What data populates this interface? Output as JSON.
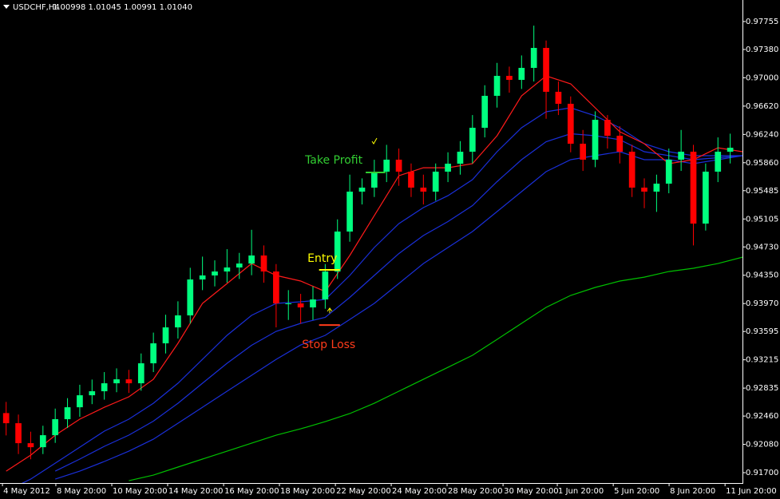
{
  "chart_data": {
    "type": "candlestick",
    "title": "USDCHF,H4",
    "subtitle": "1.00998 1.01045 1.00991 1.01040",
    "bull_color": "#00ff7f",
    "bear_color": "#ff0000",
    "xlim": [
      -0.5,
      60
    ],
    "ylim": [
      0.91561,
      0.98044
    ],
    "xticks": [
      {
        "value": -0.3,
        "label": "4 May 2012"
      },
      {
        "value": 4.05,
        "label": "8 May 20:00"
      },
      {
        "value": 8.61,
        "label": "10 May 20:00"
      },
      {
        "value": 13.16,
        "label": "14 May 20:00"
      },
      {
        "value": 17.72,
        "label": "16 May 20:00"
      },
      {
        "value": 22.27,
        "label": "18 May 20:00"
      },
      {
        "value": 26.83,
        "label": "22 May 20:00"
      },
      {
        "value": 31.38,
        "label": "24 May 20:00"
      },
      {
        "value": 35.93,
        "label": "28 May 20:00"
      },
      {
        "value": 40.49,
        "label": "30 May 20:00"
      },
      {
        "value": 44.91,
        "label": "1 Jun 20:00"
      },
      {
        "value": 49.47,
        "label": "5 Jun 20:00"
      },
      {
        "value": 54.02,
        "label": "8 Jun 20:00"
      },
      {
        "value": 58.58,
        "label": "11 Jun 20:00"
      }
    ],
    "yticks": [
      0.97755,
      {
        "value": 0.9738,
        "label": "0.97380"
      },
      {
        "value": 0.97,
        "label": "0.97000"
      },
      {
        "value": 0.9662,
        "label": "0.96620"
      },
      {
        "value": 0.9624,
        "label": "0.96240"
      },
      {
        "value": 0.9586,
        "label": "0.95860"
      },
      0.95485,
      0.95105,
      {
        "value": 0.9473,
        "label": "0.94730"
      },
      {
        "value": 0.9435,
        "label": "0.94350"
      },
      {
        "value": 0.9397,
        "label": "0.93970"
      },
      0.93595,
      0.93215,
      0.92835,
      {
        "value": 0.9246,
        "label": "0.92460"
      },
      {
        "value": 0.9208,
        "label": "0.92080"
      },
      {
        "value": 0.917,
        "label": "0.91700"
      }
    ],
    "x": [
      0,
      1,
      2,
      3,
      4,
      5,
      6,
      7,
      8,
      9,
      10,
      11,
      12,
      13,
      14,
      15,
      16,
      17,
      18,
      19,
      20,
      21,
      22,
      23,
      24,
      25,
      26,
      27,
      28,
      29,
      30,
      31,
      32,
      33,
      34,
      35,
      36,
      37,
      38,
      39,
      40,
      41,
      42,
      43,
      44,
      45,
      46,
      47,
      48,
      49,
      50,
      51,
      52,
      53,
      54,
      55,
      56,
      57,
      58,
      59
    ],
    "open": [
      0.925,
      0.92364,
      0.92096,
      0.92042,
      0.92203,
      0.92418,
      0.92578,
      0.92739,
      0.92793,
      0.929,
      0.92953,
      0.929,
      0.93168,
      0.93436,
      0.9365,
      0.93811,
      0.94293,
      0.94347,
      0.944,
      0.94454,
      0.94507,
      0.94615,
      0.944,
      0.93972,
      0.93972,
      0.93918,
      0.94025,
      0.944,
      0.94936,
      0.95472,
      0.95526,
      0.9574,
      0.95901,
      0.9574,
      0.95526,
      0.95472,
      0.9574,
      0.95847,
      0.96008,
      0.96329,
      0.96758,
      0.97026,
      0.96972,
      0.97133,
      0.97401,
      0.96812,
      0.96651,
      0.96115,
      0.95901,
      0.96436,
      0.96222,
      0.96008,
      0.95526,
      0.95472,
      0.95579,
      0.95901,
      0.96008,
      0.95043,
      0.9574,
      0.96008
    ],
    "high": [
      0.9265,
      0.9248,
      0.9225,
      0.9233,
      0.9256,
      0.927,
      0.9288,
      0.9295,
      0.9305,
      0.931,
      0.9308,
      0.933,
      0.9358,
      0.9382,
      0.94,
      0.9445,
      0.946,
      0.9455,
      0.947,
      0.9465,
      0.9496,
      0.9475,
      0.945,
      0.9415,
      0.941,
      0.942,
      0.945,
      0.951,
      0.957,
      0.9565,
      0.959,
      0.961,
      0.9605,
      0.9585,
      0.957,
      0.9585,
      0.96,
      0.9615,
      0.965,
      0.969,
      0.972,
      0.9715,
      0.973,
      0.977,
      0.975,
      0.9695,
      0.9675,
      0.963,
      0.9655,
      0.965,
      0.9635,
      0.961,
      0.9565,
      0.957,
      0.9605,
      0.963,
      0.961,
      0.9585,
      0.962,
      0.9625
    ],
    "low": [
      0.922,
      0.9195,
      0.9188,
      0.9195,
      0.921,
      0.923,
      0.9245,
      0.9262,
      0.9268,
      0.9278,
      0.9277,
      0.928,
      0.9305,
      0.933,
      0.935,
      0.937,
      0.9415,
      0.942,
      0.9425,
      0.943,
      0.9435,
      0.9425,
      0.9365,
      0.9375,
      0.937,
      0.9375,
      0.939,
      0.943,
      0.948,
      0.953,
      0.954,
      0.956,
      0.9555,
      0.954,
      0.953,
      0.9535,
      0.956,
      0.957,
      0.9585,
      0.962,
      0.966,
      0.968,
      0.9685,
      0.9695,
      0.9645,
      0.965,
      0.96,
      0.9575,
      0.958,
      0.9605,
      0.9585,
      0.954,
      0.9525,
      0.952,
      0.9545,
      0.9575,
      0.9475,
      0.9495,
      0.956,
      0.9585
    ],
    "close": [
      0.92364,
      0.92096,
      0.92042,
      0.92203,
      0.92418,
      0.92578,
      0.92739,
      0.92793,
      0.929,
      0.92953,
      0.929,
      0.93168,
      0.93436,
      0.9365,
      0.93811,
      0.94293,
      0.94347,
      0.944,
      0.94454,
      0.94507,
      0.94615,
      0.944,
      0.93972,
      0.93972,
      0.93918,
      0.94025,
      0.944,
      0.94936,
      0.95472,
      0.95526,
      0.9574,
      0.95901,
      0.9574,
      0.95526,
      0.95472,
      0.9574,
      0.95847,
      0.96008,
      0.96329,
      0.96758,
      0.97026,
      0.96972,
      0.97133,
      0.97401,
      0.96812,
      0.96651,
      0.96115,
      0.95901,
      0.96436,
      0.96222,
      0.96008,
      0.95526,
      0.95472,
      0.95579,
      0.95901,
      0.96008,
      0.95043,
      0.9574,
      0.96008,
      0.96061
    ],
    "line_x": [
      0,
      2,
      4,
      6,
      8,
      10,
      12,
      14,
      16,
      18,
      20,
      22,
      24,
      26,
      28,
      30,
      32,
      34,
      36,
      38,
      40,
      42,
      44,
      46,
      48,
      50,
      52,
      54,
      56,
      58,
      60
    ],
    "lines": [
      {
        "color": "#00c000",
        "values": [
          null,
          null,
          null,
          null,
          null,
          0.91592,
          0.91667,
          0.91775,
          0.91882,
          0.91989,
          0.92096,
          0.92203,
          0.92289,
          0.92385,
          0.92493,
          0.92632,
          0.92793,
          0.92953,
          0.93114,
          0.93275,
          0.93489,
          0.93704,
          0.93918,
          0.94079,
          0.94186,
          0.94272,
          0.94325,
          0.944,
          0.94443,
          0.94507,
          0.94593
        ]
      },
      {
        "color": "#1a2fd8",
        "values": [
          null,
          null,
          0.91614,
          0.91721,
          0.9185,
          0.91989,
          0.92149,
          0.92364,
          0.92578,
          0.92793,
          0.93007,
          0.93221,
          0.93414,
          0.93543,
          0.93757,
          0.93972,
          0.94239,
          0.94507,
          0.94722,
          0.94936,
          0.95204,
          0.95472,
          0.9574,
          0.95901,
          0.95954,
          0.96008,
          0.95901,
          0.95901,
          0.95847,
          0.95901,
          0.95954
        ]
      },
      {
        "color": "#1a2fd8",
        "values": [
          null,
          null,
          0.91721,
          0.91882,
          0.92054,
          0.92204,
          0.92391,
          0.92632,
          0.929,
          0.93168,
          0.93409,
          0.93597,
          0.93704,
          0.93784,
          0.94052,
          0.94347,
          0.94641,
          0.94883,
          0.9507,
          0.95285,
          0.95606,
          0.95901,
          0.96142,
          0.96249,
          0.96222,
          0.96169,
          0.96008,
          0.95955,
          0.95901,
          0.95928,
          0.95954
        ]
      },
      {
        "color": "#1a2fd8",
        "values": [
          0.91453,
          0.91614,
          0.91828,
          0.92042,
          0.92257,
          0.92418,
          0.92632,
          0.929,
          0.93221,
          0.93543,
          0.93811,
          0.93972,
          0.93993,
          0.94025,
          0.94347,
          0.94722,
          0.95043,
          0.95258,
          0.95418,
          0.95633,
          0.96008,
          0.96329,
          0.96544,
          0.96597,
          0.9649,
          0.96329,
          0.96115,
          0.96008,
          0.95954,
          0.95954,
          0.95954
        ]
      },
      {
        "color": "#ff1a1a",
        "values": [
          0.91721,
          0.91935,
          0.92203,
          0.92418,
          0.92578,
          0.92718,
          0.92953,
          0.93436,
          0.93972,
          0.94239,
          0.94507,
          0.94347,
          0.94272,
          0.94132,
          0.94615,
          0.9515,
          0.95686,
          0.95793,
          0.95793,
          0.95847,
          0.96222,
          0.96758,
          0.97026,
          0.96919,
          0.96597,
          0.96276,
          0.96115,
          0.95847,
          0.95901,
          0.96061,
          0.96008
        ]
      }
    ],
    "annotations": [
      {
        "text": "Take Profit",
        "value": 0.95729,
        "x": [
          29.3,
          30.9
        ],
        "color": "#32cd32"
      },
      {
        "text": "Entry",
        "value": 0.94422,
        "x": [
          25.5,
          27.2
        ],
        "color": "#ffff00"
      },
      {
        "text": "Stop Loss",
        "value": 0.93682,
        "x": [
          25.5,
          27.2
        ],
        "color": "#ff3b1a"
      }
    ]
  }
}
